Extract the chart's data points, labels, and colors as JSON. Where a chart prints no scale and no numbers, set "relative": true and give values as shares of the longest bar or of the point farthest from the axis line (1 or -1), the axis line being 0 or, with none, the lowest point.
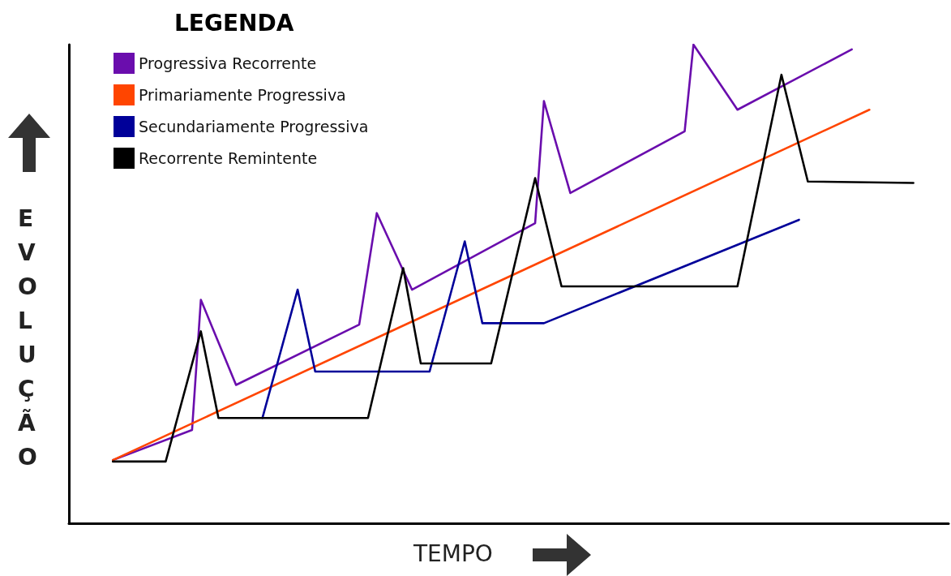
{
  "chart_data": {
    "type": "line",
    "relative": true,
    "xlabel": "TEMPO",
    "ylabel": "EVOLUÇÃO",
    "legend_title": "LEGENDA",
    "legend": "top left",
    "marker": "none",
    "line_style": "solid",
    "grid": false,
    "categories": [
      null,
      null,
      null,
      null,
      null,
      null,
      null,
      null,
      null,
      null,
      null,
      null,
      null,
      null,
      null,
      null,
      null,
      null,
      null,
      null,
      null,
      null,
      null,
      null,
      null,
      null,
      null,
      null,
      null,
      null,
      null,
      null,
      null,
      null,
      null,
      null,
      null,
      null,
      null,
      null,
      null,
      null,
      null,
      null,
      null,
      null,
      null,
      null,
      null,
      null,
      null,
      null,
      null,
      null,
      null,
      null,
      null,
      null,
      null,
      null,
      null,
      null,
      null,
      null,
      null,
      null,
      null,
      null,
      null,
      null,
      null,
      null,
      null,
      null,
      null,
      null,
      null,
      null,
      null,
      null,
      null,
      null,
      null,
      null,
      null,
      null,
      null,
      null,
      null,
      null,
      null,
      null,
      null,
      null,
      null,
      null,
      null,
      null,
      null,
      null,
      null
    ],
    "series": [
      {
        "name": "Progressiva Recorrente",
        "color": "#6a0dad",
        "values": [
          null,
          null,
          null,
          null,
          null,
          0.132,
          null,
          null,
          null,
          null,
          null,
          null,
          null,
          null,
          0.195,
          0.467,
          null,
          null,
          null,
          0.289,
          null,
          null,
          null,
          null,
          null,
          null,
          null,
          null,
          null,
          null,
          null,
          null,
          null,
          0.415,
          null,
          0.648,
          null,
          null,
          null,
          0.488,
          null,
          null,
          null,
          null,
          null,
          null,
          null,
          null,
          null,
          null,
          null,
          null,
          null,
          0.627,
          0.882,
          null,
          null,
          0.69,
          null,
          null,
          null,
          null,
          null,
          null,
          null,
          null,
          null,
          null,
          null,
          null,
          0.819,
          1,
          null,
          null,
          null,
          null,
          0.864,
          null,
          null,
          null,
          null,
          null,
          null,
          null,
          null,
          null,
          null,
          null,
          null,
          0.99,
          null,
          null,
          null,
          null,
          null,
          null,
          null,
          null,
          null,
          null,
          null
        ]
      },
      {
        "name": "Primariamente Progressiva",
        "color": "#ff4500",
        "values": [
          null,
          null,
          null,
          null,
          null,
          0.132,
          null,
          null,
          null,
          null,
          null,
          null,
          null,
          null,
          null,
          null,
          null,
          null,
          null,
          null,
          null,
          null,
          null,
          null,
          null,
          null,
          null,
          null,
          null,
          null,
          null,
          null,
          null,
          null,
          null,
          null,
          null,
          null,
          null,
          null,
          null,
          null,
          null,
          null,
          null,
          null,
          null,
          null,
          null,
          null,
          null,
          null,
          null,
          null,
          null,
          null,
          null,
          null,
          null,
          null,
          null,
          null,
          null,
          null,
          null,
          null,
          null,
          null,
          null,
          null,
          null,
          null,
          null,
          null,
          null,
          null,
          null,
          null,
          null,
          null,
          null,
          null,
          null,
          null,
          null,
          null,
          null,
          null,
          null,
          null,
          null,
          0.864,
          null,
          null,
          null,
          null,
          null,
          null,
          null,
          null,
          null
        ]
      },
      {
        "name": "Secundariamente Progressiva",
        "color": "#000099",
        "values": [
          null,
          null,
          null,
          null,
          null,
          null,
          null,
          null,
          null,
          null,
          null,
          null,
          null,
          null,
          null,
          null,
          null,
          null,
          null,
          null,
          null,
          null,
          0.22,
          null,
          null,
          null,
          0.488,
          null,
          0.317,
          null,
          null,
          null,
          null,
          null,
          null,
          null,
          null,
          null,
          null,
          null,
          null,
          0.317,
          null,
          null,
          null,
          0.589,
          null,
          0.418,
          null,
          null,
          null,
          null,
          null,
          null,
          0.418,
          null,
          null,
          null,
          null,
          null,
          null,
          null,
          null,
          null,
          null,
          null,
          null,
          null,
          null,
          null,
          null,
          null,
          null,
          null,
          null,
          null,
          null,
          null,
          null,
          null,
          null,
          null,
          null,
          0.634,
          null,
          null,
          null,
          null,
          null,
          null,
          null,
          null,
          null,
          null,
          null,
          null,
          null,
          null,
          null,
          null,
          null
        ]
      },
      {
        "name": "Recorrente Remintente",
        "color": "#000000",
        "values": [
          null,
          null,
          null,
          null,
          null,
          0.129,
          null,
          null,
          null,
          null,
          null,
          0.129,
          null,
          null,
          null,
          0.401,
          null,
          0.22,
          null,
          null,
          null,
          null,
          null,
          null,
          null,
          null,
          null,
          null,
          null,
          null,
          null,
          null,
          null,
          null,
          0.22,
          null,
          null,
          null,
          0.533,
          null,
          0.334,
          null,
          null,
          null,
          null,
          null,
          null,
          null,
          0.334,
          null,
          null,
          null,
          null,
          0.721,
          null,
          null,
          0.495,
          null,
          null,
          null,
          null,
          null,
          null,
          null,
          null,
          null,
          null,
          null,
          null,
          null,
          null,
          null,
          null,
          null,
          null,
          null,
          0.495,
          null,
          null,
          null,
          null,
          0.937,
          null,
          null,
          0.714,
          null,
          null,
          null,
          null,
          null,
          null,
          null,
          null,
          null,
          null,
          null,
          0.711,
          null,
          null,
          null,
          null
        ]
      }
    ]
  }
}
